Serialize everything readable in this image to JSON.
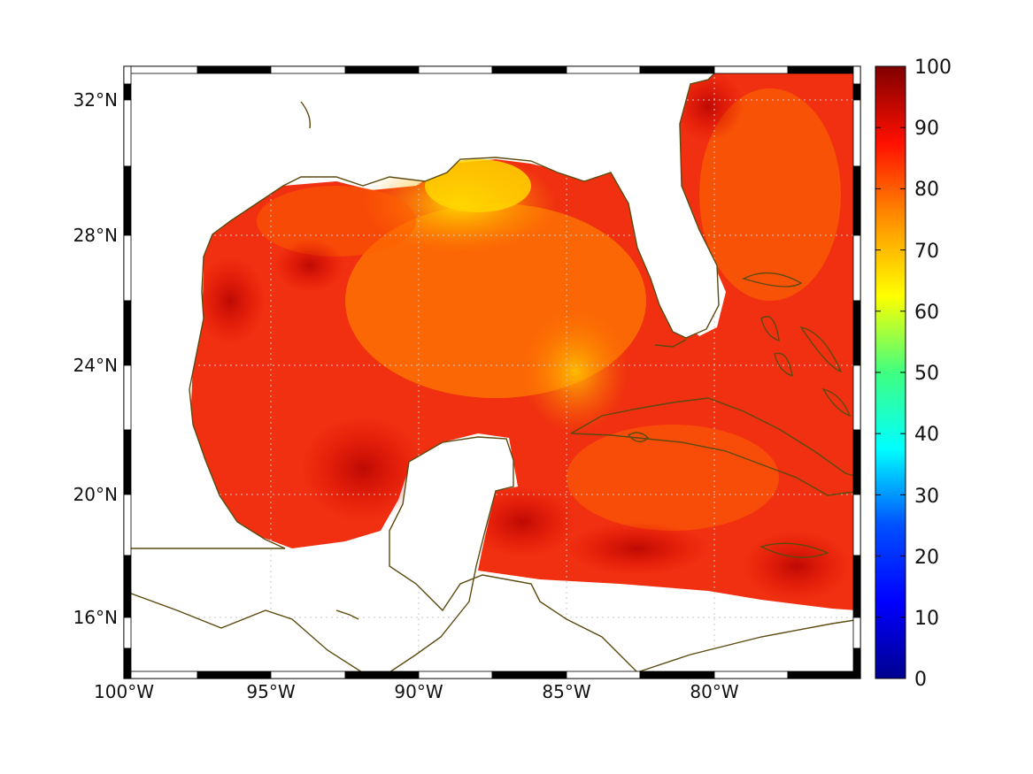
{
  "map": {
    "lon_labels": [
      "100°W",
      "95°W",
      "90°W",
      "85°W",
      "80°W"
    ],
    "lat_labels": [
      "32°N",
      "28°N",
      "24°N",
      "20°N",
      "16°N"
    ]
  },
  "colorbar": {
    "labels": [
      "100",
      "90",
      "80",
      "70",
      "60",
      "50",
      "40",
      "30",
      "20",
      "10",
      "0"
    ],
    "colormap": "jet",
    "colors": [
      "#00008f",
      "#0000ff",
      "#0080ff",
      "#00ffff",
      "#80ff80",
      "#ffff00",
      "#ff8000",
      "#ff0000",
      "#800000"
    ]
  }
}
